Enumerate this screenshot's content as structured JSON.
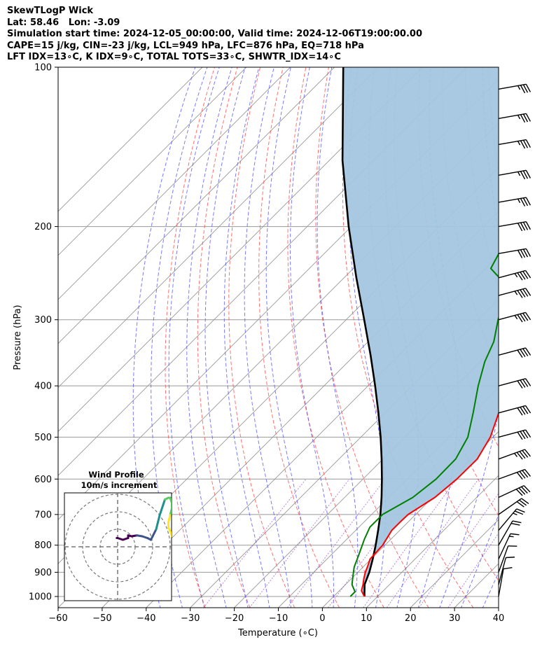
{
  "header": {
    "line1": "SkewTLogP Wick",
    "line2": "Lat: 58.46   Lon: -3.09",
    "line3": "Simulation start time: 2024-12-05_00:00:00, Valid time: 2024-12-06T19:00:00.00",
    "line4": "CAPE=15 j/kg, CIN=-23 j/kg, LCL=949 hPa, LFC=876 hPa, EQ=718 hPa",
    "line5": "LFT IDX=13∘C, K IDX=9∘C, TOTAL TOTS=33∘C, SHWTR_IDX=14∘C"
  },
  "chart_data": {
    "type": "line",
    "subtype": "skew-T log-P",
    "xlabel": "Temperature (∘C)",
    "ylabel": "Pressure (hPa)",
    "xlim": [
      -60,
      40
    ],
    "ylim": [
      1050,
      100
    ],
    "y_scale": "log",
    "x_ticks": [
      "−60",
      "−50",
      "−40",
      "−30",
      "−20",
      "−10",
      "0",
      "10",
      "20",
      "30",
      "40"
    ],
    "y_ticks": [
      "100",
      "200",
      "300",
      "400",
      "500",
      "600",
      "700",
      "800",
      "900",
      "1000"
    ],
    "grid": true,
    "colors": {
      "temperature": "#ff0000",
      "dewpoint": "#008000",
      "parcel": "#000000",
      "cape_fill": "#a3c6df",
      "dry_adiabat": "#ff4d4d",
      "moist_adiabat": "#4d4dff",
      "mixing_ratio": "#9955cc",
      "isotherm": "#999999"
    },
    "series": [
      {
        "key": "temperature",
        "points": [
          [
            1000,
            7
          ],
          [
            975,
            5
          ],
          [
            950,
            4
          ],
          [
            925,
            2.8
          ],
          [
            900,
            1.7
          ],
          [
            875,
            0.8
          ],
          [
            850,
            -0.2
          ],
          [
            800,
            -0.5
          ],
          [
            750,
            -1.8
          ],
          [
            720,
            -1.8
          ],
          [
            700,
            -1.7
          ],
          [
            650,
            0.5
          ],
          [
            600,
            1.3
          ],
          [
            550,
            1.4
          ],
          [
            500,
            -0.6
          ],
          [
            450,
            -4.2
          ],
          [
            400,
            -8
          ],
          [
            350,
            -11.8
          ],
          [
            330,
            -13.5
          ],
          [
            310,
            -16
          ],
          [
            290,
            -18.2
          ],
          [
            270,
            -17
          ],
          [
            250,
            -17
          ],
          [
            230,
            -16
          ],
          [
            210,
            -14
          ],
          [
            180,
            -10
          ],
          [
            150,
            -6
          ],
          [
            130,
            -3
          ],
          [
            110,
            -1
          ],
          [
            100,
            0
          ]
        ]
      },
      {
        "key": "dewpoint",
        "points": [
          [
            1000,
            3.8
          ],
          [
            980,
            3.8
          ],
          [
            950,
            1.5
          ],
          [
            920,
            0
          ],
          [
            880,
            -2
          ],
          [
            840,
            -3.5
          ],
          [
            780,
            -6
          ],
          [
            740,
            -7.5
          ],
          [
            700,
            -7.5
          ],
          [
            650,
            -4.5
          ],
          [
            600,
            -3.4
          ],
          [
            550,
            -3.5
          ],
          [
            500,
            -5.7
          ],
          [
            450,
            -10
          ],
          [
            400,
            -15
          ],
          [
            360,
            -19
          ],
          [
            330,
            -21.5
          ],
          [
            300,
            -25.5
          ],
          [
            280,
            -28
          ],
          [
            260,
            -30.8
          ],
          [
            240,
            -38.8
          ],
          [
            210,
            -42
          ],
          [
            190,
            -45
          ],
          [
            170,
            -47.5
          ],
          [
            150,
            -50
          ],
          [
            130,
            -52.5
          ],
          [
            110,
            -55
          ],
          [
            100,
            -56
          ]
        ]
      },
      {
        "key": "parcel",
        "points": [
          [
            1000,
            7
          ],
          [
            949,
            4.3
          ],
          [
            900,
            2.6
          ],
          [
            850,
            0.4
          ],
          [
            800,
            -2.1
          ],
          [
            750,
            -4.9
          ],
          [
            700,
            -8
          ],
          [
            650,
            -11.6
          ],
          [
            600,
            -15.7
          ],
          [
            550,
            -20.3
          ],
          [
            500,
            -25.5
          ],
          [
            450,
            -31.5
          ],
          [
            400,
            -38.4
          ],
          [
            350,
            -46.4
          ],
          [
            300,
            -55.9
          ],
          [
            250,
            -67.2
          ],
          [
            200,
            -80.6
          ],
          [
            150,
            -97
          ],
          [
            100,
            -118
          ]
        ]
      }
    ],
    "wind_barbs": [
      {
        "p": 1000,
        "speed": 10,
        "dir": 190
      },
      {
        "p": 950,
        "speed": 10,
        "dir": 195
      },
      {
        "p": 900,
        "speed": 10,
        "dir": 200
      },
      {
        "p": 850,
        "speed": 15,
        "dir": 205
      },
      {
        "p": 800,
        "speed": 20,
        "dir": 210
      },
      {
        "p": 750,
        "speed": 25,
        "dir": 220
      },
      {
        "p": 700,
        "speed": 30,
        "dir": 235
      },
      {
        "p": 650,
        "speed": 40,
        "dir": 245
      },
      {
        "p": 600,
        "speed": 40,
        "dir": 250
      },
      {
        "p": 550,
        "speed": 45,
        "dir": 250
      },
      {
        "p": 500,
        "speed": 40,
        "dir": 255
      },
      {
        "p": 450,
        "speed": 40,
        "dir": 255
      },
      {
        "p": 400,
        "speed": 40,
        "dir": 255
      },
      {
        "p": 350,
        "speed": 40,
        "dir": 255
      },
      {
        "p": 300,
        "speed": 45,
        "dir": 255
      },
      {
        "p": 270,
        "speed": 45,
        "dir": 255
      },
      {
        "p": 250,
        "speed": 45,
        "dir": 255
      },
      {
        "p": 225,
        "speed": 40,
        "dir": 260
      },
      {
        "p": 200,
        "speed": 40,
        "dir": 260
      },
      {
        "p": 180,
        "speed": 35,
        "dir": 260
      },
      {
        "p": 160,
        "speed": 35,
        "dir": 260
      },
      {
        "p": 140,
        "speed": 35,
        "dir": 260
      },
      {
        "p": 125,
        "speed": 35,
        "dir": 260
      },
      {
        "p": 110,
        "speed": 35,
        "dir": 260
      }
    ],
    "hodograph": {
      "title": "Wind Profile",
      "subtitle": "10m/s increment",
      "colormap": [
        "#440154",
        "#3b528b",
        "#21908d",
        "#5dc962",
        "#fde725"
      ],
      "rings_ms": [
        10,
        20,
        30
      ],
      "points": [
        [
          -0.5,
          5
        ],
        [
          0,
          5
        ],
        [
          3,
          4
        ],
        [
          6,
          5
        ],
        [
          6,
          6.5
        ],
        [
          8,
          6
        ],
        [
          11,
          6.5
        ],
        [
          14,
          6
        ],
        [
          17,
          5
        ],
        [
          19,
          4
        ],
        [
          20,
          6
        ],
        [
          22,
          10
        ],
        [
          23,
          14
        ],
        [
          24,
          18
        ],
        [
          25,
          21
        ],
        [
          26,
          24
        ],
        [
          27,
          27
        ],
        [
          29,
          28
        ],
        [
          30,
          28
        ],
        [
          31,
          25
        ],
        [
          31,
          22
        ],
        [
          30,
          18
        ],
        [
          29,
          14
        ],
        [
          29,
          11
        ],
        [
          30,
          9
        ],
        [
          31,
          6
        ],
        [
          32,
          5
        ]
      ]
    }
  }
}
